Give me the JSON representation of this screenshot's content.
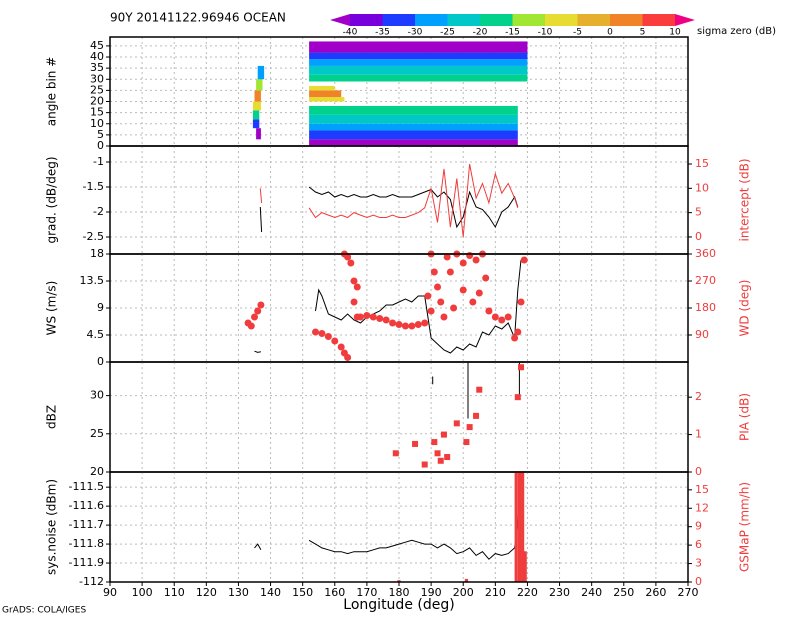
{
  "header": {
    "title": "90Y 20141122.96946 OCEAN",
    "credit": "GrADS: COLA/IGES"
  },
  "chart_data": [
    {
      "type": "heatmap",
      "ylabel": "angle bin #",
      "ylim": [
        0,
        49
      ],
      "yticks": [
        0,
        5,
        10,
        15,
        20,
        25,
        30,
        35,
        40,
        45
      ],
      "colorbar": {
        "label": "sigma zero (dB)",
        "levels": [
          -40,
          -35,
          -30,
          -25,
          -20,
          -15,
          -10,
          -5,
          0,
          5,
          10
        ],
        "colors": [
          "#a000c8",
          "#7800dc",
          "#1e3cff",
          "#00a0ff",
          "#00c8c8",
          "#00d28c",
          "#a0e632",
          "#e6dc32",
          "#e6af2d",
          "#f08228",
          "#fa3c3c",
          "#f00082"
        ]
      },
      "cells": [
        {
          "x": [
            135.5,
            137
          ],
          "y": [
            3,
            8
          ],
          "value": -42
        },
        {
          "x": [
            134.5,
            136.5
          ],
          "y": [
            8,
            12
          ],
          "value": -32
        },
        {
          "x": [
            134.5,
            136.5
          ],
          "y": [
            12,
            16
          ],
          "value": -18
        },
        {
          "x": [
            134.5,
            137
          ],
          "y": [
            16,
            20
          ],
          "value": -7
        },
        {
          "x": [
            135,
            137
          ],
          "y": [
            20,
            25
          ],
          "value": 2
        },
        {
          "x": [
            135.5,
            137.5
          ],
          "y": [
            25,
            30
          ],
          "value": -12
        },
        {
          "x": [
            136,
            138
          ],
          "y": [
            30,
            36
          ],
          "value": -27
        },
        {
          "x": [
            152,
            217
          ],
          "y": [
            0,
            3
          ],
          "value": -45
        },
        {
          "x": [
            152,
            217
          ],
          "y": [
            3,
            7
          ],
          "value": -32
        },
        {
          "x": [
            152,
            217
          ],
          "y": [
            7,
            10
          ],
          "value": -27
        },
        {
          "x": [
            152,
            217
          ],
          "y": [
            10,
            14
          ],
          "value": -22
        },
        {
          "x": [
            152,
            217
          ],
          "y": [
            14,
            18
          ],
          "value": -18
        },
        {
          "x": [
            152,
            163
          ],
          "y": [
            20,
            22
          ],
          "value": -7
        },
        {
          "x": [
            152,
            162
          ],
          "y": [
            22,
            25
          ],
          "value": 2
        },
        {
          "x": [
            152,
            160
          ],
          "y": [
            25,
            27
          ],
          "value": -8
        },
        {
          "x": [
            152,
            220
          ],
          "y": [
            29,
            32
          ],
          "value": -18
        },
        {
          "x": [
            152,
            220
          ],
          "y": [
            32,
            36
          ],
          "value": -22
        },
        {
          "x": [
            152,
            220
          ],
          "y": [
            36,
            39
          ],
          "value": -27
        },
        {
          "x": [
            152,
            220
          ],
          "y": [
            39,
            42
          ],
          "value": -33
        },
        {
          "x": [
            152,
            220
          ],
          "y": [
            42,
            47
          ],
          "value": -42
        }
      ]
    },
    {
      "type": "line",
      "ylabel": "grad. (dB/deg)",
      "y2label": "intercept (dB)",
      "ylim": [
        -2.84,
        -0.68
      ],
      "yticks": [
        -2.5,
        -2,
        -1.5,
        -1
      ],
      "y2lim": [
        -3.5,
        18.7
      ],
      "y2ticks": [
        0,
        5,
        10,
        15
      ],
      "series": [
        {
          "style": "line",
          "color": "#000000",
          "x": [
            136.8,
            137.2,
            150,
            152,
            154,
            156,
            158,
            160,
            162,
            164,
            166,
            168,
            170,
            172,
            174,
            176,
            178,
            180,
            182,
            184,
            186,
            188,
            190,
            192,
            194,
            196,
            198,
            200,
            202,
            204,
            206,
            208,
            210,
            212,
            214,
            216,
            217
          ],
          "values": [
            -1.9,
            -2.4,
            null,
            -1.5,
            -1.6,
            -1.65,
            -1.6,
            -1.7,
            -1.65,
            -1.7,
            -1.65,
            -1.7,
            -1.7,
            -1.65,
            -1.7,
            -1.7,
            -1.65,
            -1.7,
            -1.7,
            -1.7,
            -1.65,
            -1.6,
            -1.55,
            -1.7,
            -1.6,
            -1.75,
            -2.3,
            -2.1,
            -1.6,
            -1.9,
            -1.95,
            -2.1,
            -2.3,
            -2.0,
            -1.9,
            -1.7,
            -1.9
          ]
        },
        {
          "style": "line",
          "color": "#f03c3c",
          "axis": "y2",
          "x": [
            136.8,
            137.2,
            150,
            152,
            154,
            156,
            158,
            160,
            162,
            164,
            166,
            168,
            170,
            172,
            174,
            176,
            178,
            180,
            182,
            184,
            186,
            188,
            190,
            192,
            194,
            196,
            198,
            200,
            202,
            204,
            206,
            208,
            210,
            212,
            214,
            216,
            217
          ],
          "values": [
            10,
            7,
            null,
            6,
            4,
            5,
            4.5,
            4,
            4.5,
            4,
            5,
            4.5,
            4,
            4.5,
            4,
            4,
            4.5,
            4,
            4,
            4.5,
            5,
            6,
            10,
            3,
            14,
            2,
            12,
            0,
            15,
            8,
            11,
            7,
            13,
            9,
            11,
            8,
            6
          ]
        }
      ]
    },
    {
      "type": "line",
      "ylabel": "WS (m/s)",
      "y2label": "WD (deg)",
      "ylim": [
        0,
        18
      ],
      "yticks": [
        0,
        4.5,
        9,
        13.5,
        18
      ],
      "y2lim": [
        0,
        360
      ],
      "y2ticks": [
        90,
        180,
        270,
        360
      ],
      "series": [
        {
          "style": "line",
          "color": "#000000",
          "x": [
            135,
            136,
            137,
            150,
            154,
            155,
            156,
            158,
            160,
            162,
            164,
            166,
            168,
            170,
            172,
            174,
            176,
            178,
            180,
            182,
            184,
            186,
            188,
            190,
            192,
            194,
            196,
            198,
            200,
            202,
            204,
            206,
            208,
            210,
            212,
            214,
            216,
            217,
            218
          ],
          "values": [
            1.8,
            1.6,
            1.7,
            null,
            8.5,
            12,
            11,
            8,
            7.5,
            7,
            8,
            7,
            6.5,
            7.5,
            8,
            8.5,
            9.5,
            9.5,
            10,
            10.5,
            10,
            11,
            11,
            4,
            3,
            2,
            1.5,
            2.5,
            2,
            3,
            2.5,
            5,
            4.5,
            6,
            5.5,
            6.5,
            4,
            12,
            17
          ]
        },
        {
          "style": "dot",
          "color": "#f03c3c",
          "axis": "y2",
          "x": [
            133,
            134,
            135,
            136,
            137,
            154,
            156,
            158,
            160,
            162,
            163,
            164,
            163,
            164,
            165,
            166,
            167,
            166,
            167,
            168,
            170,
            172,
            174,
            176,
            178,
            180,
            182,
            184,
            186,
            188,
            190,
            190,
            191,
            192,
            193,
            194,
            195,
            196,
            198,
            200,
            200,
            202,
            204,
            206,
            207,
            208,
            210,
            212,
            214,
            216,
            217,
            218,
            219,
            189,
            197,
            203,
            205
          ],
          "values": [
            130,
            120,
            150,
            170,
            190,
            100,
            95,
            85,
            70,
            50,
            30,
            15,
            360,
            350,
            330,
            270,
            250,
            200,
            150,
            150,
            155,
            150,
            145,
            140,
            130,
            125,
            120,
            120,
            125,
            130,
            170,
            360,
            300,
            250,
            200,
            150,
            350,
            300,
            360,
            330,
            240,
            355,
            340,
            360,
            280,
            170,
            150,
            140,
            150,
            80,
            100,
            200,
            340,
            220,
            180,
            200,
            230
          ]
        }
      ]
    },
    {
      "type": "line",
      "ylabel": "dBZ",
      "y2label": "PIA (dB)",
      "ylim": [
        20,
        34.4
      ],
      "yticks": [
        20,
        25,
        30
      ],
      "y2lim": [
        0,
        2.94
      ],
      "y2ticks": [
        0,
        1,
        2
      ],
      "series": [
        {
          "style": "line",
          "color": "#000000",
          "x": [
            190.5,
            190.5,
            195,
            201.5,
            201.5,
            210,
            217.5,
            217.5
          ],
          "values": [
            32.5,
            31.5,
            null,
            27,
            34.3,
            null,
            30,
            34.3
          ]
        },
        {
          "style": "square",
          "color": "#f03c3c",
          "axis": "y2",
          "x": [
            179,
            185,
            188,
            191,
            192,
            193,
            194,
            195,
            198,
            201,
            202,
            204,
            205,
            217,
            218
          ],
          "values": [
            0.5,
            0.75,
            0.2,
            0.8,
            0.5,
            0.3,
            1.0,
            0.4,
            1.3,
            0.8,
            1.2,
            1.5,
            2.2,
            2.0,
            2.8
          ]
        }
      ]
    },
    {
      "type": "line",
      "ylabel": "sys.noise (dBm)",
      "y2label": "GSMaP (mm/h)",
      "ylim": [
        -112,
        -111.42
      ],
      "yticks": [
        -112,
        -111.9,
        -111.8,
        -111.7,
        -111.6,
        -111.5
      ],
      "y2lim": [
        0,
        17.9
      ],
      "y2ticks": [
        0,
        3,
        6,
        9,
        12,
        15
      ],
      "xlabel": "Longitude (deg)",
      "xlim": [
        90,
        270
      ],
      "xticks": [
        90,
        100,
        110,
        120,
        130,
        140,
        150,
        160,
        170,
        180,
        190,
        200,
        210,
        220,
        230,
        240,
        250,
        260,
        270
      ],
      "series": [
        {
          "style": "line",
          "color": "#000000",
          "x": [
            135,
            136,
            137,
            150,
            152,
            154,
            156,
            158,
            160,
            162,
            164,
            166,
            168,
            170,
            172,
            174,
            176,
            178,
            180,
            182,
            184,
            186,
            188,
            190,
            192,
            194,
            196,
            198,
            200,
            202,
            204,
            206,
            208,
            210,
            212,
            214,
            216,
            217,
            218
          ],
          "values": [
            -111.82,
            -111.8,
            -111.83,
            null,
            -111.78,
            -111.8,
            -111.82,
            -111.83,
            -111.84,
            -111.84,
            -111.85,
            -111.84,
            -111.84,
            -111.84,
            -111.83,
            -111.82,
            -111.82,
            -111.81,
            -111.8,
            -111.79,
            -111.78,
            -111.79,
            -111.8,
            -111.8,
            -111.82,
            -111.8,
            -111.82,
            -111.85,
            -111.84,
            -111.82,
            -111.86,
            -111.84,
            -111.88,
            -111.85,
            -111.86,
            -111.85,
            -111.82,
            -111.7,
            -111.45
          ]
        },
        {
          "style": "bar",
          "color": "#f03c3c",
          "axis": "y2",
          "x": [
            180,
            201,
            216.5,
            217.5,
            218.5,
            219.3
          ],
          "values": [
            0.3,
            0.5,
            17.9,
            17.9,
            17.9,
            5
          ]
        }
      ]
    }
  ]
}
